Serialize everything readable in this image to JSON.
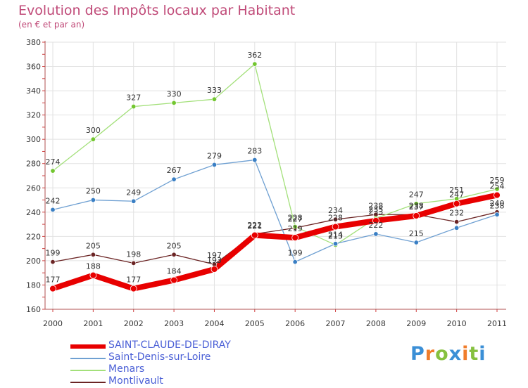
{
  "header": {
    "title": "Evolution des Impôts locaux par Habitant",
    "subtitle": "(en € et par an)"
  },
  "logo": {
    "text": "Proxiti"
  },
  "chart_data": {
    "type": "line",
    "title": "Evolution des Impôts locaux par Habitant",
    "subtitle": "(en € et par an)",
    "xlabel": "",
    "ylabel": "",
    "ylim": [
      160,
      380
    ],
    "yticks": [
      160,
      180,
      200,
      220,
      240,
      260,
      280,
      300,
      320,
      340,
      360,
      380
    ],
    "grid": true,
    "legend_position": "bottom-left",
    "x": [
      "2000",
      "2001",
      "2002",
      "2003",
      "2004",
      "2005",
      "2006",
      "2007",
      "2008",
      "2009",
      "2010",
      "2011"
    ],
    "series": [
      {
        "name": "SAINT-CLAUDE-DE-DIRAY",
        "color": "#e80000",
        "marker_color": "#e80000",
        "values": [
          177,
          188,
          177,
          184,
          193,
          221,
          219,
          228,
          233,
          237,
          247,
          254
        ],
        "labels": [
          "177",
          "188",
          "177",
          "184",
          "193",
          "221",
          "219",
          "228",
          "233",
          "237",
          "247",
          "254"
        ]
      },
      {
        "name": "Saint-Denis-sur-Loire",
        "color": "#6fa0d2",
        "marker_color": "#3a7fc4",
        "values": [
          242,
          250,
          249,
          267,
          279,
          283,
          199,
          214,
          222,
          215,
          227,
          238
        ],
        "labels": [
          "242",
          "250",
          "249",
          "267",
          "279",
          "283",
          "199",
          "214",
          "222",
          "215",
          "",
          "238"
        ]
      },
      {
        "name": "Menars",
        "color": "#a3e07a",
        "marker_color": "#72c62f",
        "values": [
          274,
          300,
          327,
          330,
          333,
          362,
          228,
          213,
          235,
          247,
          251,
          259
        ],
        "labels": [
          "274",
          "300",
          "327",
          "330",
          "333",
          "362",
          "228",
          "213",
          "235",
          "247",
          "251",
          "259"
        ]
      },
      {
        "name": "Montlivault",
        "color": "#6b2424",
        "marker_color": "#6b2424",
        "values": [
          199,
          205,
          198,
          205,
          197,
          222,
          227,
          234,
          238,
          238,
          232,
          240
        ],
        "labels": [
          "199",
          "205",
          "198",
          "205",
          "197",
          "222",
          "227",
          "234",
          "238",
          "238",
          "232",
          "240"
        ]
      }
    ]
  }
}
